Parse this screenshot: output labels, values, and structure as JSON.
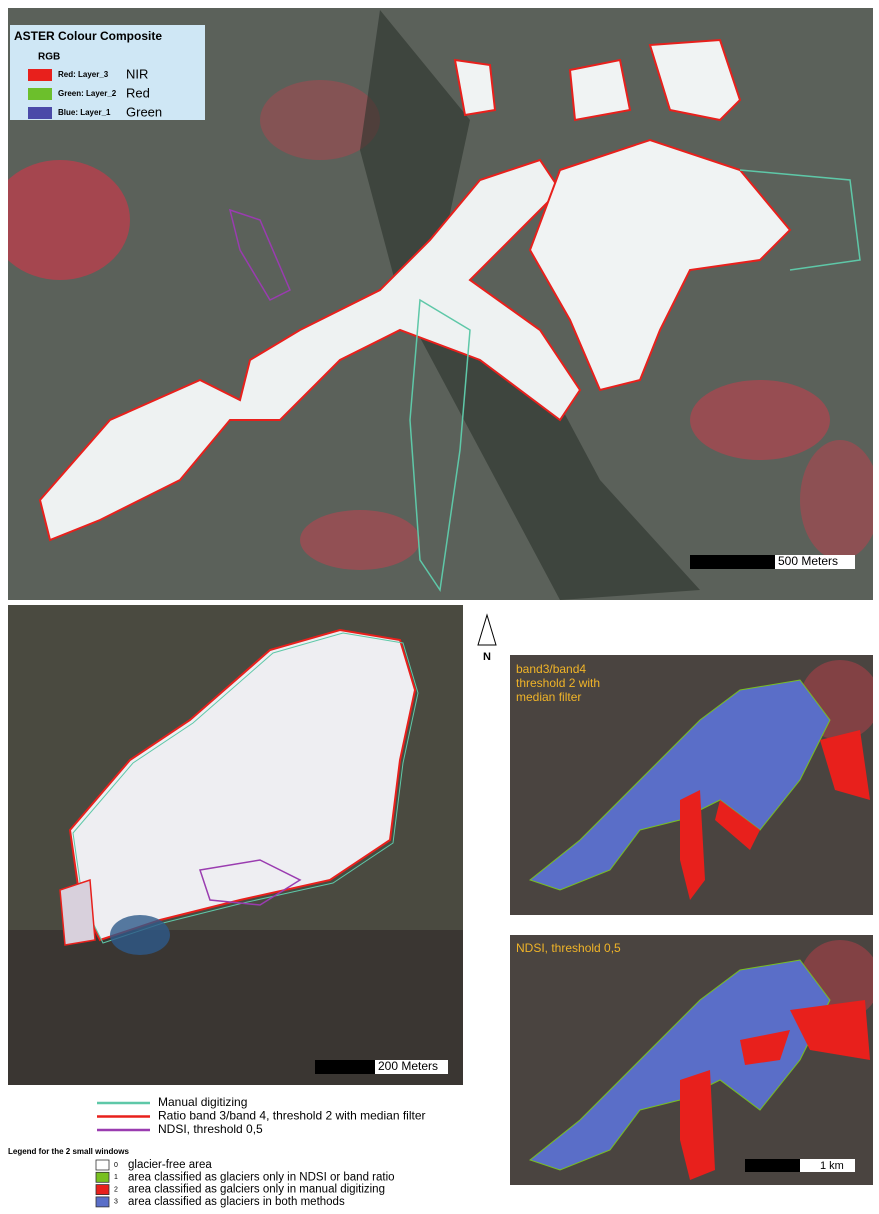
{
  "main_map": {
    "legend_title": "ASTER Colour Composite",
    "legend_subtitle": "RGB",
    "bands": [
      {
        "layer": "Red:  Layer_3",
        "band": "NIR",
        "color": "#e8201c"
      },
      {
        "layer": "Green: Layer_2",
        "band": "Red",
        "color": "#6cbf2c"
      },
      {
        "layer": "Blue:  Layer_1",
        "band": "Green",
        "color": "#4a4aa8"
      }
    ],
    "scale_bar": "500 Meters"
  },
  "detail_map": {
    "scale_bar": "200 Meters"
  },
  "north_arrow": "N",
  "small_maps": [
    {
      "label": [
        "band3/band4",
        "threshold 2 with",
        "median filter"
      ]
    },
    {
      "label": [
        "NDSI, threshold 0,5"
      ],
      "scale_bar": "1 km"
    }
  ],
  "line_legend": [
    {
      "label": "Manual digitizing",
      "color": "#5ec8a8"
    },
    {
      "label": "Ratio band 3/band 4, threshold 2 with median filter",
      "color": "#e8201c"
    },
    {
      "label": "NDSI, threshold 0,5",
      "color": "#9a3cb0"
    }
  ],
  "class_legend": {
    "title": "Legend for the 2 small windows",
    "items": [
      {
        "code": "0",
        "label": "glacier-free area",
        "color": "#ffffff"
      },
      {
        "code": "1",
        "label": "area classified as glaciers only in NDSI or band ratio",
        "color": "#78c020"
      },
      {
        "code": "2",
        "label": "area classified as galciers only in manual digitizing",
        "color": "#e8201c"
      },
      {
        "code": "3",
        "label": "area classified as glaciers in both methods",
        "color": "#5a6ec8"
      }
    ]
  }
}
